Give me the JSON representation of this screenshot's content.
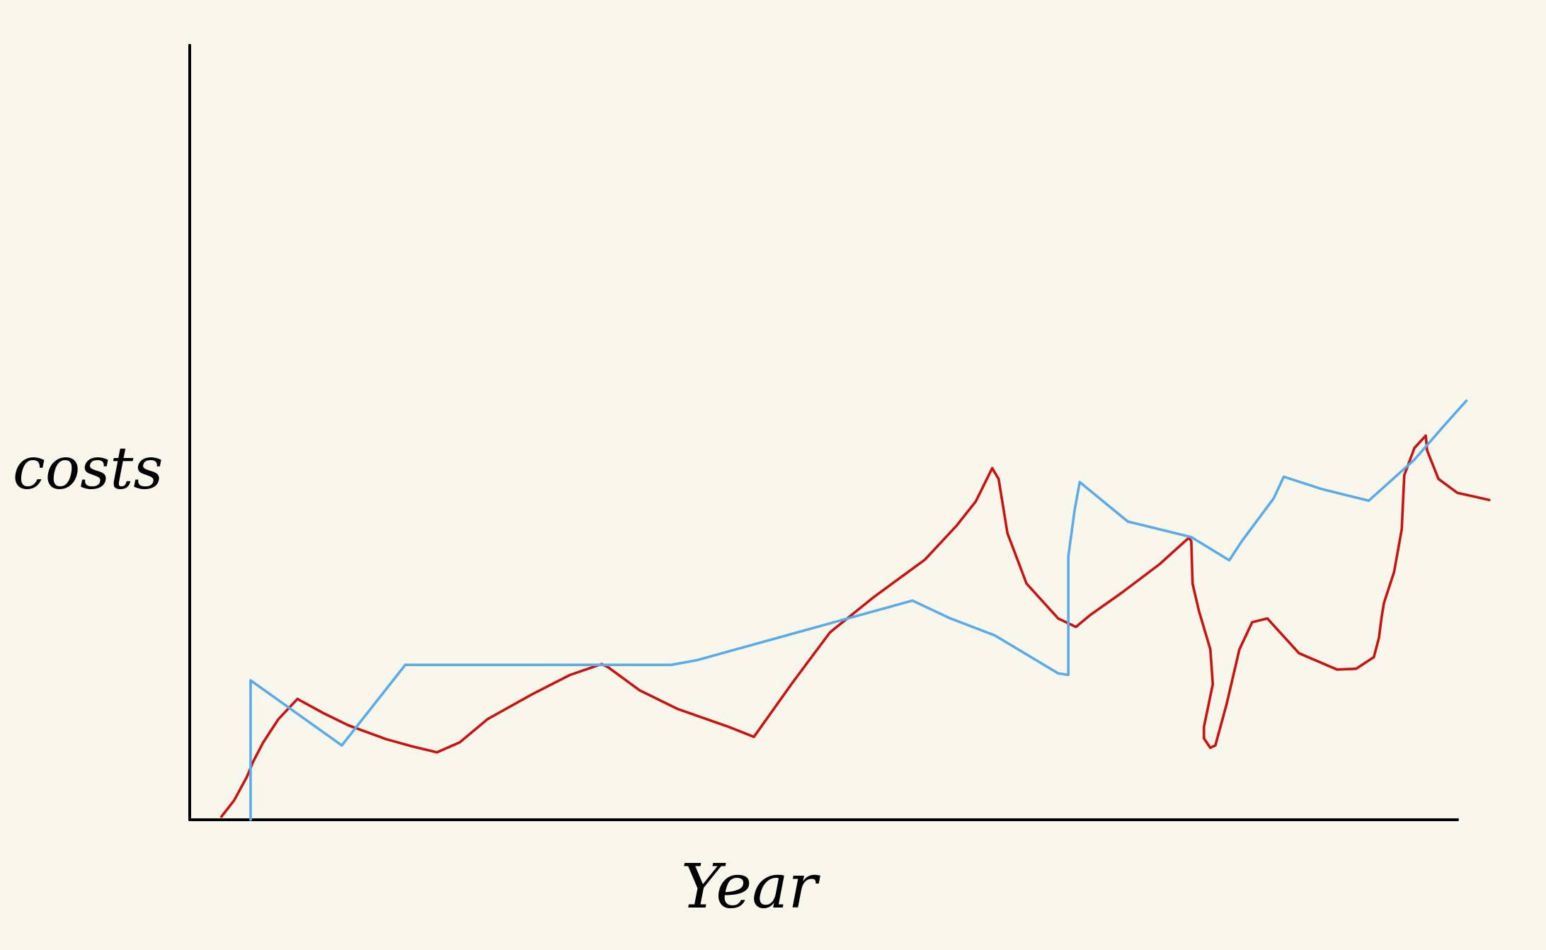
{
  "chart_data": {
    "type": "line",
    "xlabel": "Year",
    "ylabel": "costs",
    "x_range": [
      0,
      100
    ],
    "y_range": [
      0,
      100
    ],
    "grid": false,
    "legend": "none",
    "background_color": "#f9f7ec",
    "axis_color": "#000000",
    "series": [
      {
        "color": "#cc1111",
        "points": [
          [
            2.5,
            0.4
          ],
          [
            3.5,
            2.5
          ],
          [
            4.5,
            5.5
          ],
          [
            5.0,
            7.5
          ],
          [
            5.8,
            10.0
          ],
          [
            7.0,
            13.0
          ],
          [
            8.5,
            15.6
          ],
          [
            10.5,
            13.8
          ],
          [
            12.5,
            12.2
          ],
          [
            15.5,
            10.4
          ],
          [
            17.5,
            9.5
          ],
          [
            19.5,
            8.7
          ],
          [
            21.3,
            10.0
          ],
          [
            23.5,
            13.0
          ],
          [
            27.0,
            16.2
          ],
          [
            30.0,
            18.7
          ],
          [
            32.5,
            20.1
          ],
          [
            33.0,
            19.7
          ],
          [
            35.5,
            16.7
          ],
          [
            38.5,
            14.3
          ],
          [
            42.5,
            12.0
          ],
          [
            44.5,
            10.7
          ],
          [
            45.5,
            13.0
          ],
          [
            47.5,
            17.6
          ],
          [
            50.5,
            24.2
          ],
          [
            54.0,
            28.8
          ],
          [
            58.0,
            33.6
          ],
          [
            60.5,
            38.0
          ],
          [
            62.0,
            41.1
          ],
          [
            63.3,
            45.4
          ],
          [
            63.8,
            44.0
          ],
          [
            64.5,
            37.0
          ],
          [
            66.0,
            30.5
          ],
          [
            68.5,
            26.0
          ],
          [
            69.9,
            24.9
          ],
          [
            71.0,
            26.4
          ],
          [
            73.5,
            29.3
          ],
          [
            76.5,
            33.0
          ],
          [
            78.8,
            36.4
          ],
          [
            79.0,
            36.0
          ],
          [
            79.1,
            30.5
          ],
          [
            79.6,
            27.0
          ],
          [
            80.5,
            22.0
          ],
          [
            80.7,
            17.5
          ],
          [
            80.0,
            12.0
          ],
          [
            80.0,
            10.5
          ],
          [
            80.5,
            9.3
          ],
          [
            80.9,
            9.6
          ],
          [
            81.8,
            15.0
          ],
          [
            82.8,
            22.0
          ],
          [
            83.8,
            25.5
          ],
          [
            85.0,
            26.0
          ],
          [
            87.5,
            21.5
          ],
          [
            90.5,
            19.4
          ],
          [
            92.0,
            19.5
          ],
          [
            93.4,
            21.0
          ],
          [
            93.8,
            23.5
          ],
          [
            94.0,
            26.0
          ],
          [
            94.2,
            28.0
          ],
          [
            95.0,
            32.0
          ],
          [
            95.6,
            37.5
          ],
          [
            95.8,
            44.5
          ],
          [
            96.6,
            48.0
          ],
          [
            97.5,
            49.6
          ],
          [
            97.6,
            47.7
          ],
          [
            98.5,
            44.0
          ],
          [
            100.0,
            42.2
          ],
          [
            102.5,
            41.3
          ]
        ]
      },
      {
        "color": "#5aabea",
        "points": [
          [
            4.8,
            0.0
          ],
          [
            4.8,
            18.0
          ],
          [
            12.0,
            9.6
          ],
          [
            17.0,
            20.0
          ],
          [
            38.0,
            20.0
          ],
          [
            40.0,
            20.6
          ],
          [
            57.0,
            28.3
          ],
          [
            60.0,
            26.0
          ],
          [
            63.5,
            23.8
          ],
          [
            68.5,
            18.9
          ],
          [
            69.3,
            18.7
          ],
          [
            69.3,
            23.5
          ],
          [
            69.3,
            34.0
          ],
          [
            69.8,
            40.0
          ],
          [
            70.2,
            43.6
          ],
          [
            74.0,
            38.5
          ],
          [
            79.0,
            36.5
          ],
          [
            82.0,
            33.5
          ],
          [
            83.0,
            36.0
          ],
          [
            85.5,
            41.5
          ],
          [
            86.3,
            44.3
          ],
          [
            89.3,
            42.7
          ],
          [
            93.0,
            41.2
          ],
          [
            96.6,
            46.5
          ],
          [
            99.0,
            51.0
          ],
          [
            100.7,
            54.1
          ]
        ]
      }
    ]
  }
}
